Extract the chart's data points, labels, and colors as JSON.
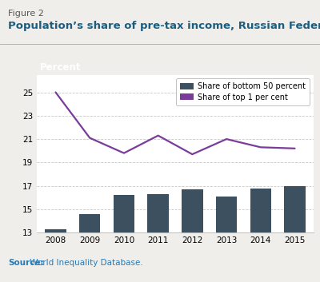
{
  "years": [
    2008,
    2009,
    2010,
    2011,
    2012,
    2013,
    2014,
    2015
  ],
  "bar_values": [
    13.3,
    14.6,
    16.2,
    16.3,
    16.7,
    16.1,
    16.8,
    17.0
  ],
  "line_values": [
    25.0,
    21.1,
    19.8,
    21.3,
    19.7,
    21.0,
    20.3,
    20.2
  ],
  "bar_color": "#3d5060",
  "line_color": "#7b3b9b",
  "header_bg": "#1b5e82",
  "header_text": "Percent",
  "header_text_color": "#ffffff",
  "ylabel_ticks": [
    13,
    15,
    17,
    19,
    21,
    23,
    25
  ],
  "ylim": [
    13,
    26.5
  ],
  "figure_label": "Figure 2",
  "title": "Population’s share of pre-tax income, Russian Federation",
  "source_label": "Source:",
  "source_text": " World Inequality Database.",
  "legend_bar_label": "Share of bottom 50 percent",
  "legend_line_label": "Share of top 1 per cent",
  "fig_bg": "#f0eeea",
  "plot_bg": "#ffffff",
  "grid_color": "#c8c8c8",
  "title_color": "#1b5e82",
  "figure_label_color": "#555555",
  "source_color": "#2a7ab5",
  "tick_fontsize": 7.5,
  "legend_fontsize": 7.0,
  "header_fontsize": 8.5,
  "title_fontsize": 9.5,
  "figure_label_fontsize": 8.0,
  "source_fontsize": 7.5
}
